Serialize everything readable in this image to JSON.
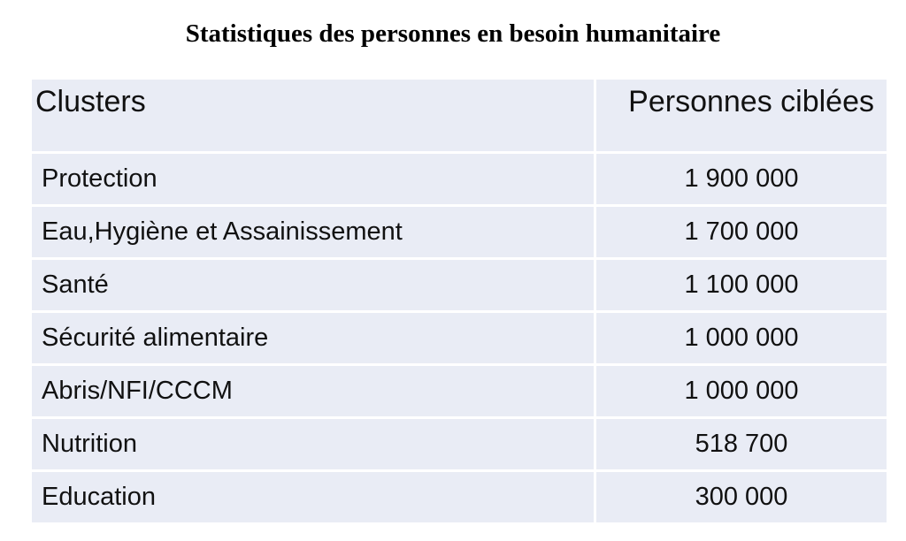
{
  "title": "Statistiques des personnes en besoin humanitaire",
  "table": {
    "headers": [
      "Clusters",
      "Personnes ciblées"
    ],
    "rows": [
      {
        "cluster": "Protection",
        "value": "1 900 000"
      },
      {
        "cluster": "Eau,Hygiène et Assainissement",
        "value": "1 700 000"
      },
      {
        "cluster": "Santé",
        "value": "1 100 000"
      },
      {
        "cluster": "Sécurité alimentaire",
        "value": "1 000 000"
      },
      {
        "cluster": "Abris/NFI/CCCM",
        "value": "1 000 000"
      },
      {
        "cluster": "Nutrition",
        "value": "518 700"
      },
      {
        "cluster": "Education",
        "value": "300 000"
      }
    ]
  },
  "colors": {
    "cell_background": "#e9ecf5",
    "border": "#ffffff",
    "text": "#111111"
  }
}
